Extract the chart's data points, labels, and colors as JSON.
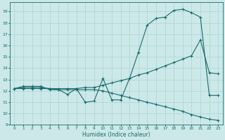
{
  "xlabel": "Humidex (Indice chaleur)",
  "bg_color": "#cce8e8",
  "line_color": "#1a6b6b",
  "grid_color": "#aad4d4",
  "xlim": [
    -0.5,
    23.5
  ],
  "ylim": [
    9,
    19.8
  ],
  "xticks": [
    0,
    1,
    2,
    3,
    4,
    5,
    6,
    7,
    8,
    9,
    10,
    11,
    12,
    13,
    14,
    15,
    16,
    17,
    18,
    19,
    20,
    21,
    22,
    23
  ],
  "yticks": [
    9,
    10,
    11,
    12,
    13,
    14,
    15,
    16,
    17,
    18,
    19
  ],
  "line1_x": [
    0,
    1,
    2,
    3,
    4,
    5,
    6,
    7,
    8,
    9,
    10,
    11,
    12,
    13,
    14,
    15,
    16,
    17,
    18,
    19,
    20,
    21,
    22,
    23
  ],
  "line1_y": [
    12.2,
    12.4,
    12.4,
    12.4,
    12.1,
    12.1,
    11.7,
    12.2,
    11.0,
    11.1,
    13.1,
    11.2,
    11.2,
    13.1,
    15.4,
    17.8,
    18.4,
    18.5,
    19.1,
    19.2,
    18.9,
    18.5,
    11.6,
    11.6
  ],
  "line2_x": [
    0,
    1,
    2,
    3,
    4,
    5,
    6,
    7,
    8,
    9,
    10,
    11,
    12,
    13,
    14,
    15,
    16,
    17,
    18,
    19,
    20,
    21,
    22,
    23
  ],
  "line2_y": [
    12.2,
    12.3,
    12.3,
    12.3,
    12.2,
    12.2,
    12.2,
    12.2,
    12.3,
    12.3,
    12.5,
    12.7,
    12.9,
    13.1,
    13.4,
    13.6,
    13.9,
    14.2,
    14.5,
    14.8,
    15.1,
    16.5,
    13.6,
    13.5
  ],
  "line3_x": [
    0,
    1,
    2,
    3,
    4,
    5,
    6,
    7,
    8,
    9,
    10,
    11,
    12,
    13,
    14,
    15,
    16,
    17,
    18,
    19,
    20,
    21,
    22,
    23
  ],
  "line3_y": [
    12.2,
    12.2,
    12.2,
    12.2,
    12.2,
    12.1,
    12.1,
    12.1,
    12.1,
    12.1,
    12.0,
    11.8,
    11.6,
    11.4,
    11.2,
    11.0,
    10.8,
    10.6,
    10.4,
    10.2,
    9.9,
    9.7,
    9.5,
    9.4
  ]
}
